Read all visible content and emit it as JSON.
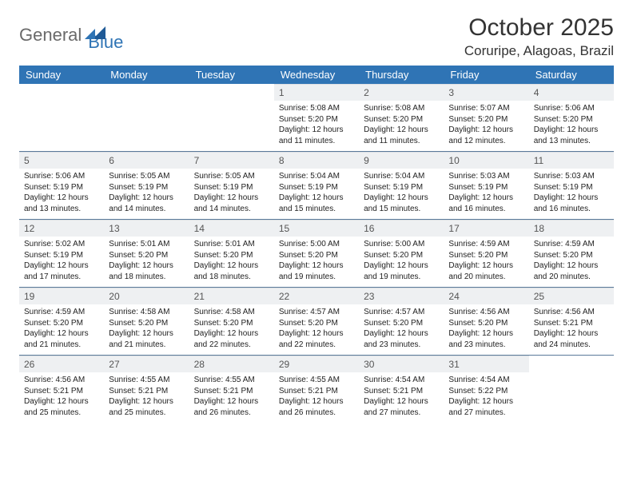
{
  "logo": {
    "word1": "General",
    "word2": "Blue"
  },
  "title": "October 2025",
  "location": "Coruripe, Alagoas, Brazil",
  "colors": {
    "header_bg": "#2f74b5",
    "header_text": "#ffffff",
    "daynum_bg": "#eef0f2",
    "row_border": "#5a7a9a",
    "logo_gray": "#6a6a6a",
    "logo_blue": "#2f74b5"
  },
  "day_headers": [
    "Sunday",
    "Monday",
    "Tuesday",
    "Wednesday",
    "Thursday",
    "Friday",
    "Saturday"
  ],
  "weeks": [
    [
      {
        "n": "",
        "empty": true
      },
      {
        "n": "",
        "empty": true
      },
      {
        "n": "",
        "empty": true
      },
      {
        "n": "1",
        "sunrise": "5:08 AM",
        "sunset": "5:20 PM",
        "daylight": "12 hours and 11 minutes."
      },
      {
        "n": "2",
        "sunrise": "5:08 AM",
        "sunset": "5:20 PM",
        "daylight": "12 hours and 11 minutes."
      },
      {
        "n": "3",
        "sunrise": "5:07 AM",
        "sunset": "5:20 PM",
        "daylight": "12 hours and 12 minutes."
      },
      {
        "n": "4",
        "sunrise": "5:06 AM",
        "sunset": "5:20 PM",
        "daylight": "12 hours and 13 minutes."
      }
    ],
    [
      {
        "n": "5",
        "sunrise": "5:06 AM",
        "sunset": "5:19 PM",
        "daylight": "12 hours and 13 minutes."
      },
      {
        "n": "6",
        "sunrise": "5:05 AM",
        "sunset": "5:19 PM",
        "daylight": "12 hours and 14 minutes."
      },
      {
        "n": "7",
        "sunrise": "5:05 AM",
        "sunset": "5:19 PM",
        "daylight": "12 hours and 14 minutes."
      },
      {
        "n": "8",
        "sunrise": "5:04 AM",
        "sunset": "5:19 PM",
        "daylight": "12 hours and 15 minutes."
      },
      {
        "n": "9",
        "sunrise": "5:04 AM",
        "sunset": "5:19 PM",
        "daylight": "12 hours and 15 minutes."
      },
      {
        "n": "10",
        "sunrise": "5:03 AM",
        "sunset": "5:19 PM",
        "daylight": "12 hours and 16 minutes."
      },
      {
        "n": "11",
        "sunrise": "5:03 AM",
        "sunset": "5:19 PM",
        "daylight": "12 hours and 16 minutes."
      }
    ],
    [
      {
        "n": "12",
        "sunrise": "5:02 AM",
        "sunset": "5:19 PM",
        "daylight": "12 hours and 17 minutes."
      },
      {
        "n": "13",
        "sunrise": "5:01 AM",
        "sunset": "5:20 PM",
        "daylight": "12 hours and 18 minutes."
      },
      {
        "n": "14",
        "sunrise": "5:01 AM",
        "sunset": "5:20 PM",
        "daylight": "12 hours and 18 minutes."
      },
      {
        "n": "15",
        "sunrise": "5:00 AM",
        "sunset": "5:20 PM",
        "daylight": "12 hours and 19 minutes."
      },
      {
        "n": "16",
        "sunrise": "5:00 AM",
        "sunset": "5:20 PM",
        "daylight": "12 hours and 19 minutes."
      },
      {
        "n": "17",
        "sunrise": "4:59 AM",
        "sunset": "5:20 PM",
        "daylight": "12 hours and 20 minutes."
      },
      {
        "n": "18",
        "sunrise": "4:59 AM",
        "sunset": "5:20 PM",
        "daylight": "12 hours and 20 minutes."
      }
    ],
    [
      {
        "n": "19",
        "sunrise": "4:59 AM",
        "sunset": "5:20 PM",
        "daylight": "12 hours and 21 minutes."
      },
      {
        "n": "20",
        "sunrise": "4:58 AM",
        "sunset": "5:20 PM",
        "daylight": "12 hours and 21 minutes."
      },
      {
        "n": "21",
        "sunrise": "4:58 AM",
        "sunset": "5:20 PM",
        "daylight": "12 hours and 22 minutes."
      },
      {
        "n": "22",
        "sunrise": "4:57 AM",
        "sunset": "5:20 PM",
        "daylight": "12 hours and 22 minutes."
      },
      {
        "n": "23",
        "sunrise": "4:57 AM",
        "sunset": "5:20 PM",
        "daylight": "12 hours and 23 minutes."
      },
      {
        "n": "24",
        "sunrise": "4:56 AM",
        "sunset": "5:20 PM",
        "daylight": "12 hours and 23 minutes."
      },
      {
        "n": "25",
        "sunrise": "4:56 AM",
        "sunset": "5:21 PM",
        "daylight": "12 hours and 24 minutes."
      }
    ],
    [
      {
        "n": "26",
        "sunrise": "4:56 AM",
        "sunset": "5:21 PM",
        "daylight": "12 hours and 25 minutes."
      },
      {
        "n": "27",
        "sunrise": "4:55 AM",
        "sunset": "5:21 PM",
        "daylight": "12 hours and 25 minutes."
      },
      {
        "n": "28",
        "sunrise": "4:55 AM",
        "sunset": "5:21 PM",
        "daylight": "12 hours and 26 minutes."
      },
      {
        "n": "29",
        "sunrise": "4:55 AM",
        "sunset": "5:21 PM",
        "daylight": "12 hours and 26 minutes."
      },
      {
        "n": "30",
        "sunrise": "4:54 AM",
        "sunset": "5:21 PM",
        "daylight": "12 hours and 27 minutes."
      },
      {
        "n": "31",
        "sunrise": "4:54 AM",
        "sunset": "5:22 PM",
        "daylight": "12 hours and 27 minutes."
      },
      {
        "n": "",
        "empty": true
      }
    ]
  ],
  "labels": {
    "sunrise": "Sunrise:",
    "sunset": "Sunset:",
    "daylight": "Daylight:"
  }
}
